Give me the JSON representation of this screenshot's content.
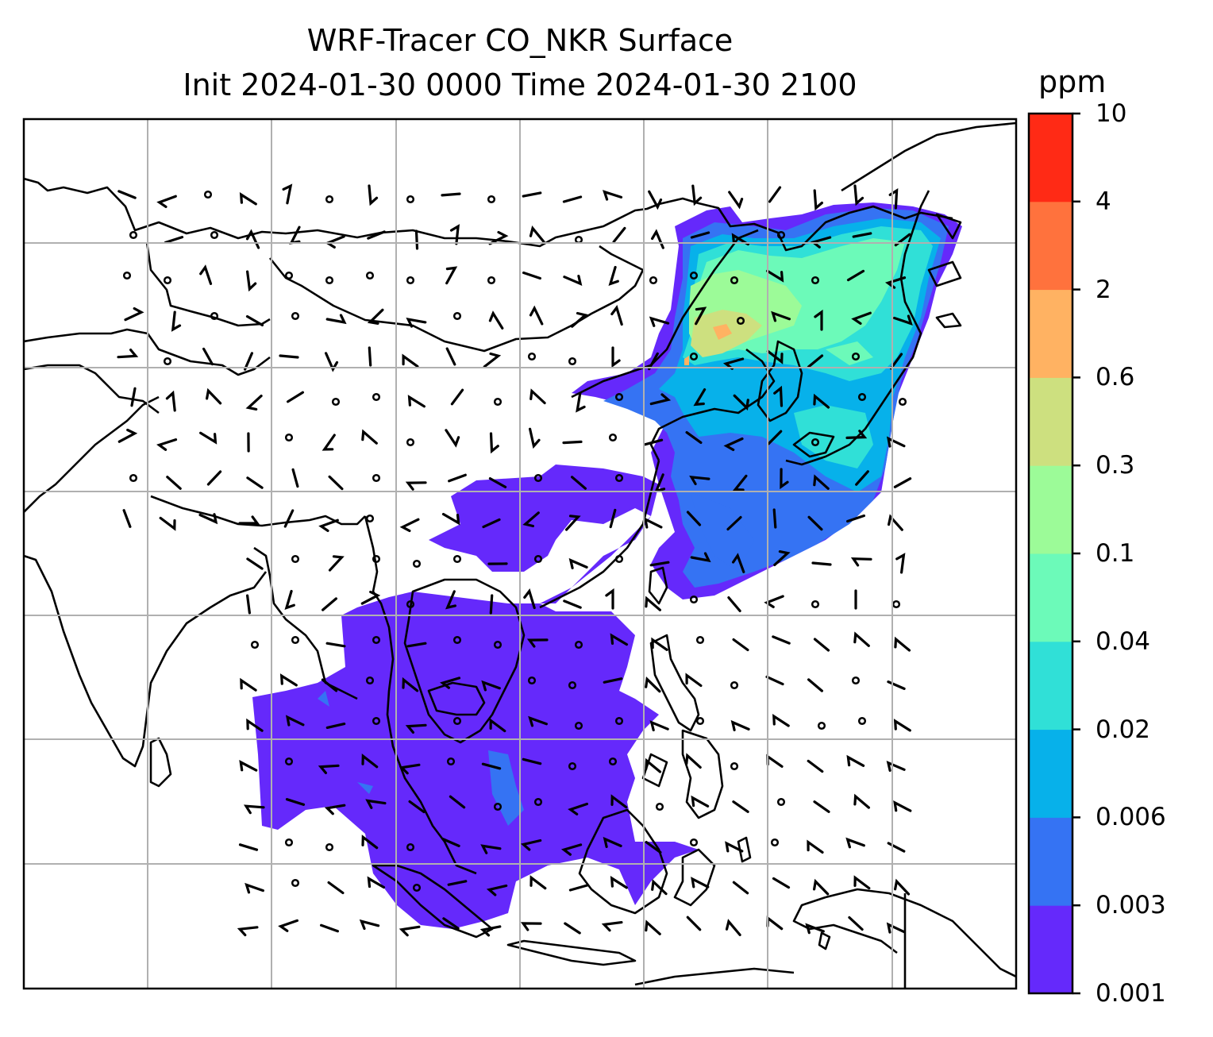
{
  "title": {
    "line1": "WRF-Tracer CO_NKR Surface",
    "line2": "Init 2024-01-30 0000 Time 2024-01-30 2100"
  },
  "colorbar": {
    "unit": "ppm",
    "levels": [
      "0.001",
      "0.003",
      "0.006",
      "0.02",
      "0.04",
      "0.1",
      "0.3",
      "0.6",
      "2",
      "4",
      "10"
    ],
    "colors": [
      "#6529fb",
      "#3573f3",
      "#07b1ea",
      "#30e0d7",
      "#6cfab9",
      "#9cfb98",
      "#cde07f",
      "#ffb262",
      "#ff723d",
      "#ff2a15"
    ]
  }
}
